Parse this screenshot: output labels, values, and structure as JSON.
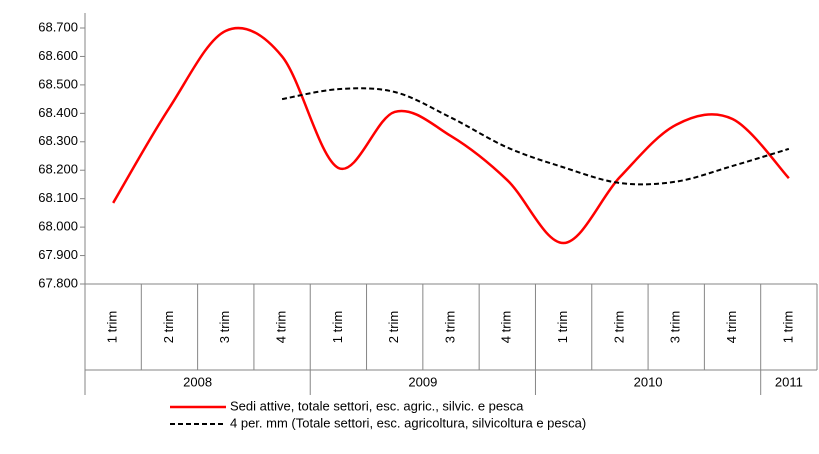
{
  "chart_data": {
    "type": "line",
    "categories": [
      "1 trim",
      "2 trim",
      "3 trim",
      "4 trim",
      "1 trim",
      "2 trim",
      "3 trim",
      "4 trim",
      "1 trim",
      "2 trim",
      "3 trim",
      "4 trim",
      "1 trim"
    ],
    "year_groups": [
      {
        "label": "2008",
        "count": 4
      },
      {
        "label": "2009",
        "count": 4
      },
      {
        "label": "2010",
        "count": 4
      },
      {
        "label": "2011",
        "count": 1
      }
    ],
    "series": [
      {
        "name": "Sedi attive, totale settori, esc. agric., silvic. e pesca",
        "color": "#ff0000",
        "dash": false,
        "values": [
          68085,
          68420,
          68690,
          68600,
          68208,
          68405,
          68320,
          68165,
          67944,
          68176,
          68360,
          68380,
          68172
        ]
      },
      {
        "name": "4 per. mm (Totale settori, esc. agricoltura, silvicoltura e pesca)",
        "color": "#000000",
        "dash": true,
        "values": [
          null,
          null,
          null,
          68450,
          68485,
          68475,
          68385,
          68280,
          68210,
          68155,
          68160,
          68215,
          68275
        ]
      }
    ],
    "ylim": [
      67800,
      68700
    ],
    "yticks": [
      {
        "value": 67800,
        "label": "67.800"
      },
      {
        "value": 67900,
        "label": "67.900"
      },
      {
        "value": 68000,
        "label": "68.000"
      },
      {
        "value": 68100,
        "label": "68.100"
      },
      {
        "value": 68200,
        "label": "68.200"
      },
      {
        "value": 68300,
        "label": "68.300"
      },
      {
        "value": 68400,
        "label": "68.400"
      },
      {
        "value": 68500,
        "label": "68.500"
      },
      {
        "value": 68600,
        "label": "68.600"
      },
      {
        "value": 68700,
        "label": "68.700"
      }
    ],
    "smooth": true,
    "legend": "bottom"
  }
}
